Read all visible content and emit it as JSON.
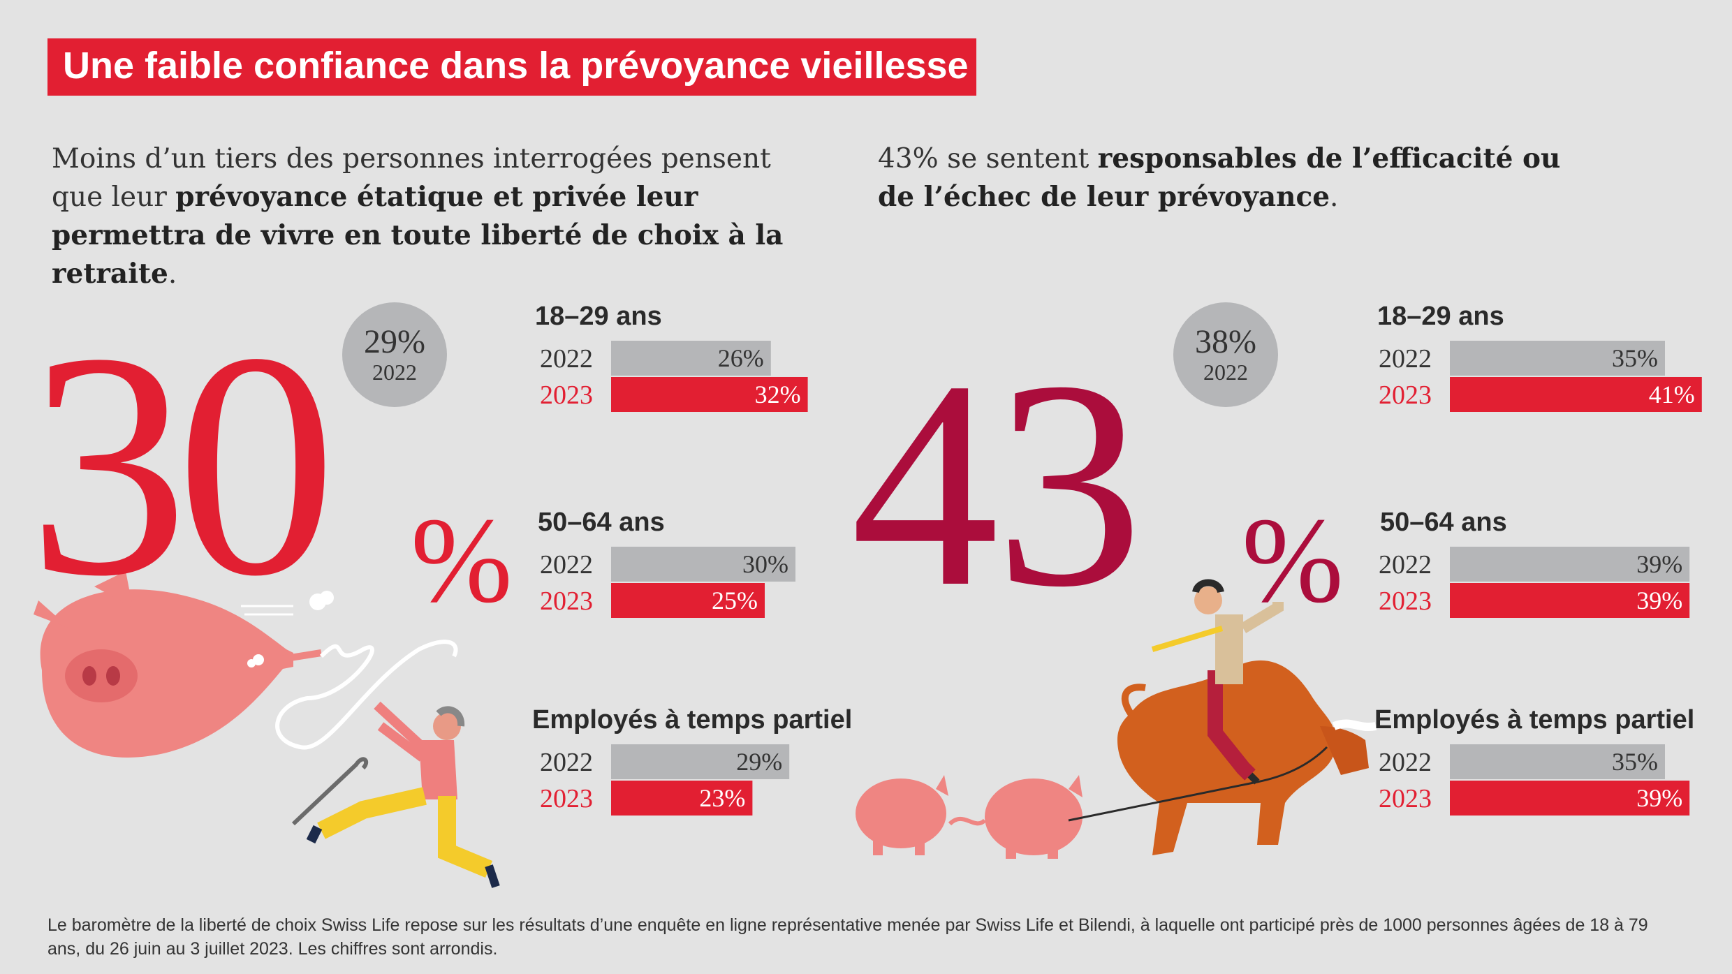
{
  "title": "Une faible confiance dans la prévoyance vieillesse",
  "intro_left": {
    "part1": "Moins d’un tiers des personnes interrogées pensent que leur ",
    "bold": "prévoyance étatique et privée leur permettra de vivre en toute liberté de choix à la retraite",
    "part2": "."
  },
  "intro_right": {
    "part1": "43% se sentent ",
    "bold": "responsables de l’efficacité ou de l’échec de leur prévoyance",
    "part2": "."
  },
  "big_left": {
    "value": "30",
    "unit": "%",
    "prev_value": "29%",
    "prev_year": "2022"
  },
  "big_right": {
    "value": "43",
    "unit": "%",
    "prev_value": "38%",
    "prev_year": "2022"
  },
  "colors": {
    "red": "#e21f32",
    "dark_red": "#ab0d3c",
    "grey_bar": "#b5b6b8",
    "background": "#e3e3e3"
  },
  "chart_data": [
    {
      "type": "bar",
      "orientation": "horizontal",
      "groups": [
        {
          "label": "18–29 ans",
          "rows": [
            {
              "year": "2022",
              "value": 26
            },
            {
              "year": "2023",
              "value": 32
            }
          ]
        },
        {
          "label": "50–64 ans",
          "rows": [
            {
              "year": "2022",
              "value": 30
            },
            {
              "year": "2023",
              "value": 25
            }
          ]
        },
        {
          "label": "Employés à temps partiel",
          "rows": [
            {
              "year": "2022",
              "value": 29
            },
            {
              "year": "2023",
              "value": 23
            }
          ]
        }
      ],
      "unit": "%"
    },
    {
      "type": "bar",
      "orientation": "horizontal",
      "groups": [
        {
          "label": "18–29 ans",
          "rows": [
            {
              "year": "2022",
              "value": 35
            },
            {
              "year": "2023",
              "value": 41
            }
          ]
        },
        {
          "label": "50–64 ans",
          "rows": [
            {
              "year": "2022",
              "value": 39
            },
            {
              "year": "2023",
              "value": 39
            }
          ]
        },
        {
          "label": "Employés à temps partiel",
          "rows": [
            {
              "year": "2022",
              "value": 35
            },
            {
              "year": "2023",
              "value": 39
            }
          ]
        }
      ],
      "unit": "%"
    }
  ],
  "footnote": "Le baromètre de la liberté de choix Swiss Life repose sur les résultats d’une enquête en ligne représentative menée par Swiss Life et Bilendi, à laquelle ont participé près de 1000 personnes âgées de 18 à 79 ans, du 26 juin au 3 juillet 2023. Les chiffres sont arrondis."
}
